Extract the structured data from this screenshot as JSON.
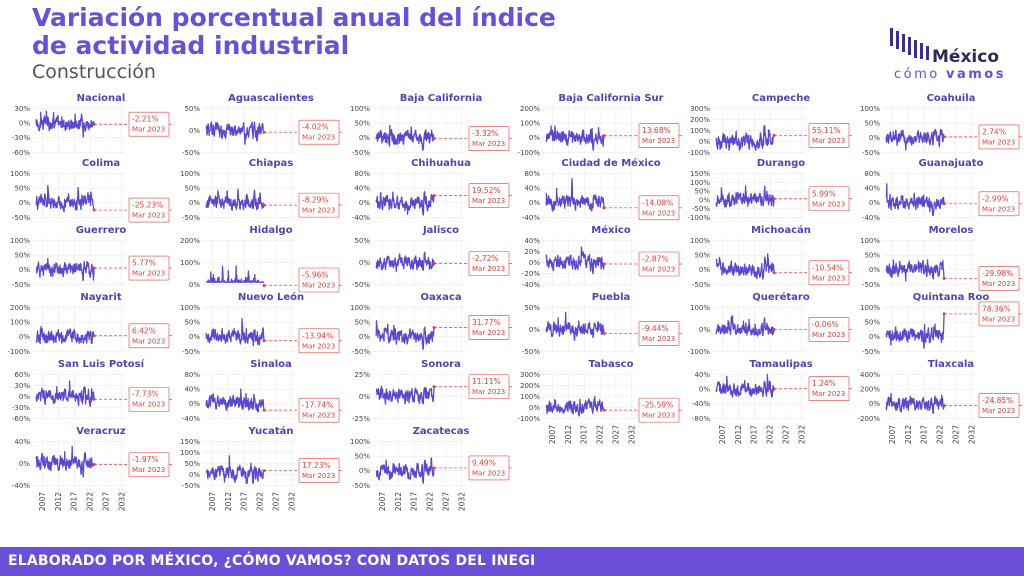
{
  "header": {
    "title": "Variación porcentual anual del índice de actividad industrial",
    "subtitle": "Construcción"
  },
  "logo": {
    "line1": "México",
    "line2_a": "cómo",
    "line2_b": "vamos"
  },
  "footer": {
    "text": "ELABORADO POR MÉXICO, ¿CÓMO VAMOS? CON DATOS DEL INEGI"
  },
  "colors": {
    "line": "#5b48d0",
    "accent": "#6a4fd8",
    "callout": "#e0403a",
    "grid": "#e6e6e6"
  },
  "chart_data": {
    "type": "line",
    "x_ticks": [
      "2007",
      "2012",
      "2017",
      "2022",
      "2027",
      "2032"
    ],
    "x_range": [
      2004,
      2033
    ],
    "last_date": "Mar 2023",
    "panels": [
      {
        "name": "Nacional",
        "yticks": [
          "30%",
          "0%",
          "-30%",
          "-60%"
        ],
        "yvals": [
          30,
          0,
          -30,
          -60
        ],
        "latest": "-2.21%"
      },
      {
        "name": "Aguascalientes",
        "yticks": [
          "50%",
          "0%",
          "-50%"
        ],
        "yvals": [
          50,
          0,
          -50
        ],
        "latest": "-4.02%"
      },
      {
        "name": "Baja California",
        "yticks": [
          "100%",
          "50%",
          "0%",
          "-50%"
        ],
        "yvals": [
          100,
          50,
          0,
          -50
        ],
        "latest": "-3.32%"
      },
      {
        "name": "Baja California Sur",
        "yticks": [
          "200%",
          "100%",
          "0%",
          "-100%"
        ],
        "yvals": [
          200,
          100,
          0,
          -100
        ],
        "latest": "13.68%"
      },
      {
        "name": "Campeche",
        "yticks": [
          "300%",
          "200%",
          "100%",
          "0%",
          "-100%"
        ],
        "yvals": [
          300,
          200,
          100,
          0,
          -100
        ],
        "latest": "55.11%"
      },
      {
        "name": "Coahuila",
        "yticks": [
          "100%",
          "50%",
          "0%",
          "-50%"
        ],
        "yvals": [
          100,
          50,
          0,
          -50
        ],
        "latest": "2.74%"
      },
      {
        "name": "Colima",
        "yticks": [
          "100%",
          "50%",
          "0%",
          "-50%"
        ],
        "yvals": [
          100,
          50,
          0,
          -50
        ],
        "latest": "-25.23%"
      },
      {
        "name": "Chiapas",
        "yticks": [
          "100%",
          "50%",
          "0%",
          "-50%"
        ],
        "yvals": [
          100,
          50,
          0,
          -50
        ],
        "latest": "-8.29%"
      },
      {
        "name": "Chihuahua",
        "yticks": [
          "80%",
          "40%",
          "0%",
          "-40%"
        ],
        "yvals": [
          80,
          40,
          0,
          -40
        ],
        "latest": "19.52%"
      },
      {
        "name": "Ciudad de México",
        "yticks": [
          "80%",
          "40%",
          "0%",
          "-40%"
        ],
        "yvals": [
          80,
          40,
          0,
          -40
        ],
        "latest": "-14.08%"
      },
      {
        "name": "Durango",
        "yticks": [
          "150%",
          "100%",
          "50%",
          "0%",
          "-50%",
          "-100%"
        ],
        "yvals": [
          150,
          100,
          50,
          0,
          -50,
          -100
        ],
        "latest": "5.99%"
      },
      {
        "name": "Guanajuato",
        "yticks": [
          "80%",
          "40%",
          "0%",
          "-40%"
        ],
        "yvals": [
          80,
          40,
          0,
          -40
        ],
        "latest": "-2.99%"
      },
      {
        "name": "Guerrero",
        "yticks": [
          "100%",
          "50%",
          "0%",
          "-50%"
        ],
        "yvals": [
          100,
          50,
          0,
          -50
        ],
        "latest": "5.77%"
      },
      {
        "name": "Hidalgo",
        "yticks": [
          "200%",
          "100%",
          "0%"
        ],
        "yvals": [
          200,
          100,
          0
        ],
        "latest": "-5.96%"
      },
      {
        "name": "Jalisco",
        "yticks": [
          "50%",
          "0%",
          "-50%"
        ],
        "yvals": [
          50,
          0,
          -50
        ],
        "latest": "-2.72%"
      },
      {
        "name": "México",
        "yticks": [
          "40%",
          "20%",
          "0%",
          "-20%",
          "-40%"
        ],
        "yvals": [
          40,
          20,
          0,
          -20,
          -40
        ],
        "latest": "-2.87%"
      },
      {
        "name": "Michoacán",
        "yticks": [
          "100%",
          "50%",
          "0%",
          "-50%"
        ],
        "yvals": [
          100,
          50,
          0,
          -50
        ],
        "latest": "-10.54%"
      },
      {
        "name": "Morelos",
        "yticks": [
          "100%",
          "50%",
          "0%",
          "-50%"
        ],
        "yvals": [
          100,
          50,
          0,
          -50
        ],
        "latest": "-29.98%"
      },
      {
        "name": "Nayarit",
        "yticks": [
          "200%",
          "100%",
          "0%",
          "-100%"
        ],
        "yvals": [
          200,
          100,
          0,
          -100
        ],
        "latest": "6.42%"
      },
      {
        "name": "Nuevo León",
        "yticks": [
          "100%",
          "50%",
          "0%",
          "-50%"
        ],
        "yvals": [
          100,
          50,
          0,
          -50
        ],
        "latest": "-13.94%"
      },
      {
        "name": "Oaxaca",
        "yticks": [
          "100%",
          "50%",
          "0%",
          "-50%"
        ],
        "yvals": [
          100,
          50,
          0,
          -50
        ],
        "latest": "31.77%"
      },
      {
        "name": "Puebla",
        "yticks": [
          "50%",
          "0%",
          "-50%"
        ],
        "yvals": [
          50,
          0,
          -50
        ],
        "latest": "-9.44%"
      },
      {
        "name": "Querétaro",
        "yticks": [
          "100%",
          "0%",
          "-100%"
        ],
        "yvals": [
          100,
          0,
          -100
        ],
        "latest": "-0.06%"
      },
      {
        "name": "Quintana Roo",
        "yticks": [
          "100%",
          "50%",
          "0%",
          "-50%"
        ],
        "yvals": [
          100,
          50,
          0,
          -50
        ],
        "latest": "78.36%"
      },
      {
        "name": "San Luis Potosí",
        "yticks": [
          "60%",
          "30%",
          "0%",
          "-30%",
          "-60%"
        ],
        "yvals": [
          60,
          30,
          0,
          -30,
          -60
        ],
        "latest": "-7.73%"
      },
      {
        "name": "Sinaloa",
        "yticks": [
          "80%",
          "40%",
          "0%",
          "-40%"
        ],
        "yvals": [
          80,
          40,
          0,
          -40
        ],
        "latest": "-17.74%"
      },
      {
        "name": "Sonora",
        "yticks": [
          "25%",
          "0%",
          "-25%"
        ],
        "yvals": [
          25,
          0,
          -25
        ],
        "latest": "11.11%"
      },
      {
        "name": "Tabasco",
        "yticks": [
          "300%",
          "200%",
          "100%",
          "0%",
          "-100%"
        ],
        "yvals": [
          300,
          200,
          100,
          0,
          -100
        ],
        "latest": "-25.59%"
      },
      {
        "name": "Tamaulipas",
        "yticks": [
          "40%",
          "0%",
          "-40%",
          "-80%"
        ],
        "yvals": [
          40,
          0,
          -40,
          -80
        ],
        "latest": "1.24%"
      },
      {
        "name": "Tlaxcala",
        "yticks": [
          "400%",
          "200%",
          "0%",
          "-200%"
        ],
        "yvals": [
          400,
          200,
          0,
          -200
        ],
        "latest": "-24.85%"
      },
      {
        "name": "Veracruz",
        "yticks": [
          "40%",
          "0%",
          "-40%"
        ],
        "yvals": [
          40,
          0,
          -40
        ],
        "latest": "-1.97%"
      },
      {
        "name": "Yucatán",
        "yticks": [
          "150%",
          "100%",
          "50%",
          "0%",
          "-50%"
        ],
        "yvals": [
          150,
          100,
          50,
          0,
          -50
        ],
        "latest": "17.23%"
      },
      {
        "name": "Zacatecas",
        "yticks": [
          "100%",
          "50%",
          "0%",
          "-50%"
        ],
        "yvals": [
          100,
          50,
          0,
          -50
        ],
        "latest": "9.49%"
      }
    ]
  }
}
